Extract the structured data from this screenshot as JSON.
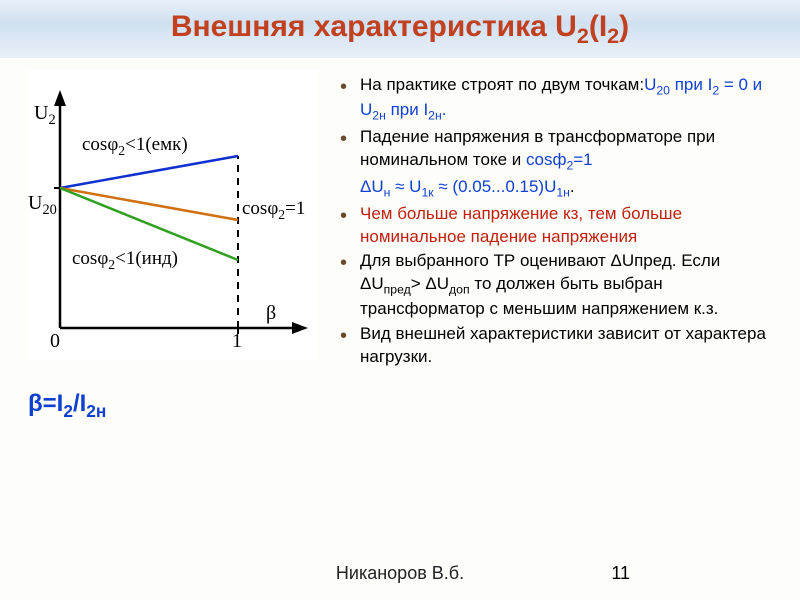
{
  "title_html": "Внешняя характеристика U<sub>2</sub>(I<sub>2</sub>)",
  "chart": {
    "y_label": "U<sub>2</sub>",
    "u20_label": "U<sub>20</sub>",
    "origin_label": "0",
    "x_tick_label": "1",
    "beta_label": "β",
    "line1_label": "cosφ<sub>2</sub>&lt;1(емк)",
    "line2_label": "cosφ<sub>2</sub>=1",
    "line3_label": "cosφ<sub>2</sub>&lt;1(инд)",
    "colors": {
      "axis": "#000000",
      "dashed": "#000000",
      "emk": "#1030d0",
      "eq1": "#d07010",
      "ind": "#30a020"
    }
  },
  "beta_eq_html": "β=I<sub>2</sub>/I<sub>2н</sub>",
  "bullets": [
    {
      "type": "li",
      "html": "На практике строят по двум точкам:<span class='highlight-blue'>U<sub>20</sub> при I<sub>2</sub> = 0 и U<sub>2н</sub> при I<sub>2н</sub>.</span>"
    },
    {
      "type": "li",
      "html": "Падение напряжения в трансформаторе при номинальном токе  и <span class='highlight-blue'>cosф<sub>2</sub>=1</span>"
    },
    {
      "type": "sub",
      "html": "<span class='highlight-blue'>ΔU<sub>н</sub> ≈ U<sub>1к</sub> ≈ (0.05...0.15)U<sub>1н</sub></span>."
    },
    {
      "type": "li",
      "html": "<span class='highlight-red'>Чем больше напряжение кз, тем больше номинальное падение напряжения</span>"
    },
    {
      "type": "li",
      "html": "Для выбранного ТР оценивают ΔUпред. Если ΔU<sub>пред</sub>&gt; ΔU<sub>доп</sub> то должен быть выбран трансформатор с меньшим напряжением к.з."
    },
    {
      "type": "li",
      "html": "Вид внешней характеристики зависит от характера нагрузки."
    }
  ],
  "footer": "Никаноров В.б.",
  "page_num": "11"
}
